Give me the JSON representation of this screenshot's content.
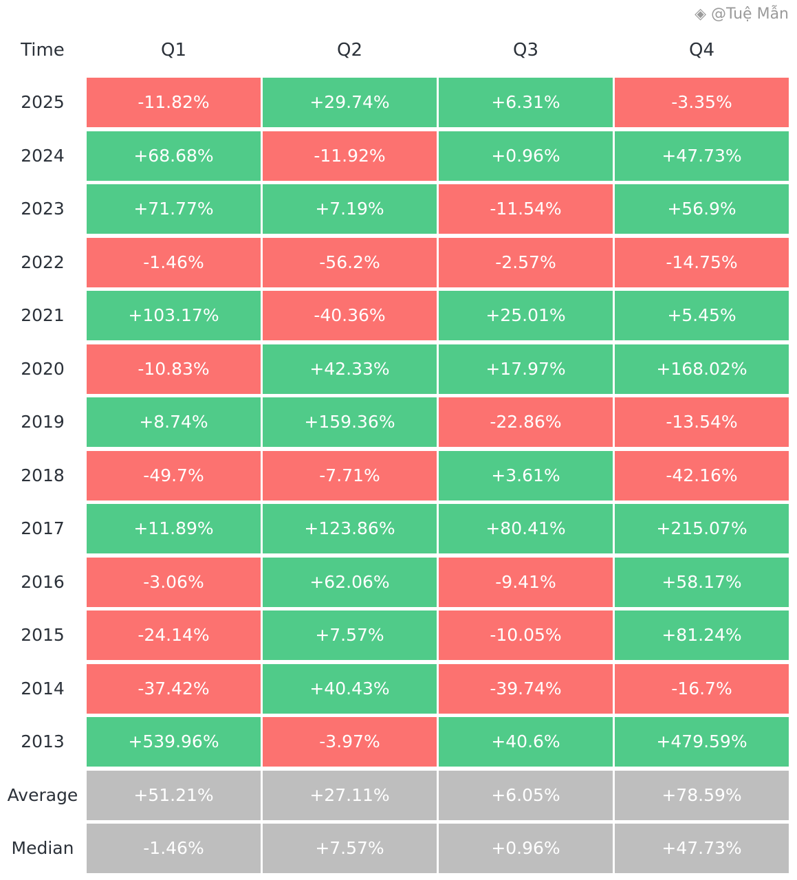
{
  "chart_data": {
    "type": "heatmap",
    "row_header": "Time",
    "columns": [
      "Q1",
      "Q2",
      "Q3",
      "Q4"
    ],
    "rows": [
      {
        "label": "2025",
        "values": [
          "-11.82%",
          "+29.74%",
          "+6.31%",
          "-3.35%"
        ]
      },
      {
        "label": "2024",
        "values": [
          "+68.68%",
          "-11.92%",
          "+0.96%",
          "+47.73%"
        ]
      },
      {
        "label": "2023",
        "values": [
          "+71.77%",
          "+7.19%",
          "-11.54%",
          "+56.9%"
        ]
      },
      {
        "label": "2022",
        "values": [
          "-1.46%",
          "-56.2%",
          "-2.57%",
          "-14.75%"
        ]
      },
      {
        "label": "2021",
        "values": [
          "+103.17%",
          "-40.36%",
          "+25.01%",
          "+5.45%"
        ]
      },
      {
        "label": "2020",
        "values": [
          "-10.83%",
          "+42.33%",
          "+17.97%",
          "+168.02%"
        ]
      },
      {
        "label": "2019",
        "values": [
          "+8.74%",
          "+159.36%",
          "-22.86%",
          "-13.54%"
        ]
      },
      {
        "label": "2018",
        "values": [
          "-49.7%",
          "-7.71%",
          "+3.61%",
          "-42.16%"
        ]
      },
      {
        "label": "2017",
        "values": [
          "+11.89%",
          "+123.86%",
          "+80.41%",
          "+215.07%"
        ]
      },
      {
        "label": "2016",
        "values": [
          "-3.06%",
          "+62.06%",
          "-9.41%",
          "+58.17%"
        ]
      },
      {
        "label": "2015",
        "values": [
          "-24.14%",
          "+7.57%",
          "-10.05%",
          "+81.24%"
        ]
      },
      {
        "label": "2014",
        "values": [
          "-37.42%",
          "+40.43%",
          "-39.74%",
          "-16.7%"
        ]
      },
      {
        "label": "2013",
        "values": [
          "+539.96%",
          "-3.97%",
          "+40.6%",
          "+479.59%"
        ]
      }
    ],
    "summary_rows": [
      {
        "label": "Average",
        "values": [
          "+51.21%",
          "+27.11%",
          "+6.05%",
          "+78.59%"
        ]
      },
      {
        "label": "Median",
        "values": [
          "-1.46%",
          "+7.57%",
          "+0.96%",
          "+47.73%"
        ]
      }
    ]
  },
  "colors": {
    "positive": "#50cb89",
    "negative": "#fc7270",
    "summary": "#bebebe"
  },
  "watermark": "@Tuệ Mẫn"
}
